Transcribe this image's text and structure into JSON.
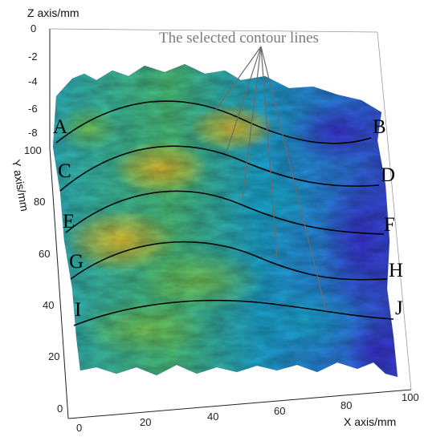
{
  "chart_data": {
    "type": "surface3d",
    "x_axis": {
      "label": "X axis/mm",
      "range": [
        0,
        100
      ],
      "ticks": [
        "0",
        "20",
        "40",
        "60",
        "80",
        "100"
      ]
    },
    "y_axis": {
      "label": "Y axis/mm",
      "range": [
        0,
        100
      ],
      "ticks": [
        "0",
        "20",
        "40",
        "60",
        "80",
        "100"
      ]
    },
    "z_axis": {
      "label": "Z axis/mm",
      "range": [
        -8,
        0
      ],
      "ticks": [
        "0",
        "-2",
        "-4",
        "-6",
        "-8"
      ]
    },
    "annotation": "The selected contour lines",
    "contour_lines": [
      {
        "start": "A",
        "end": "B"
      },
      {
        "start": "C",
        "end": "D"
      },
      {
        "start": "E",
        "end": "F"
      },
      {
        "start": "G",
        "end": "H"
      },
      {
        "start": "I",
        "end": "J"
      }
    ],
    "colormap": [
      "#3b2fd6",
      "#2f6fe8",
      "#1aa7d9",
      "#22c0a8",
      "#6cc65a",
      "#c9c43a",
      "#f2c72f"
    ]
  }
}
